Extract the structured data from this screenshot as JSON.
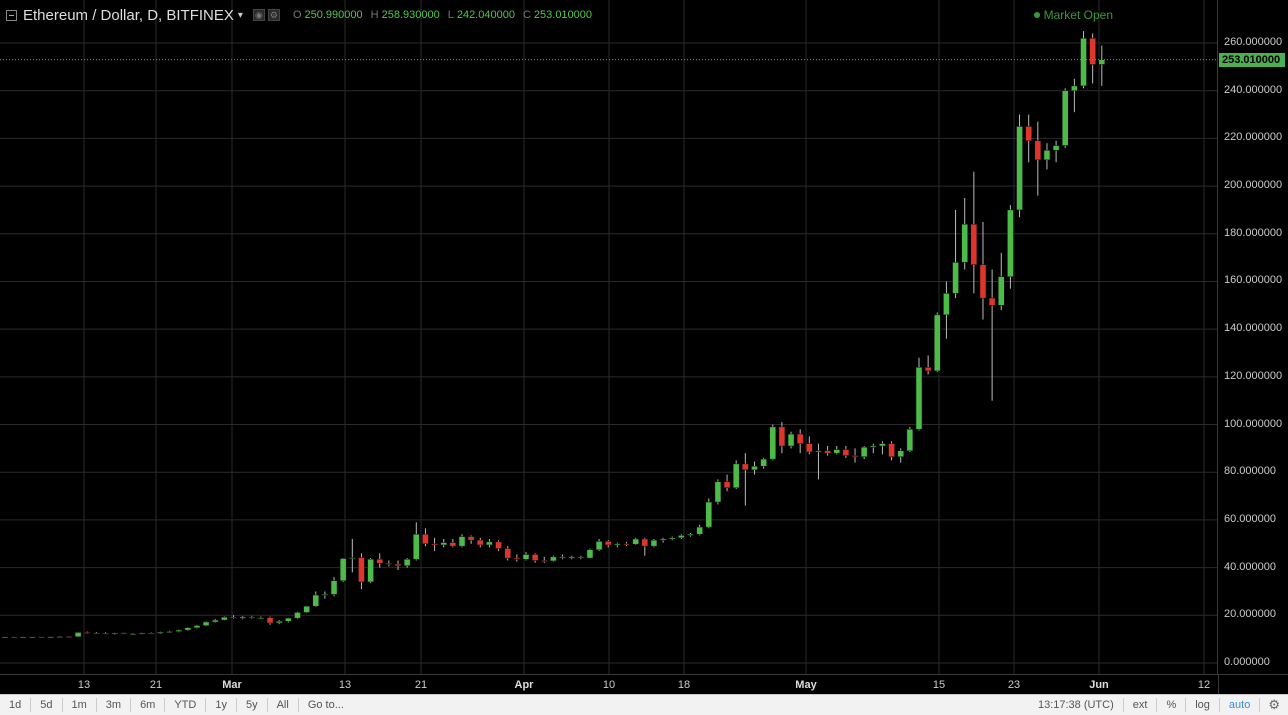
{
  "header": {
    "symbol_title": "Ethereum / Dollar, D, BITFINEX",
    "caret": "▾",
    "ohlc": [
      {
        "k": "O",
        "v": "250.990000"
      },
      {
        "k": "H",
        "v": "258.930000"
      },
      {
        "k": "L",
        "v": "242.040000"
      },
      {
        "k": "C",
        "v": "253.010000"
      }
    ]
  },
  "market_status": "Market Open",
  "price_axis": {
    "labels": [
      "260.000000",
      "240.000000",
      "220.000000",
      "200.000000",
      "180.000000",
      "160.000000",
      "140.000000",
      "120.000000",
      "100.000000",
      "80.000000",
      "60.000000",
      "40.000000",
      "20.000000",
      "0.000000"
    ],
    "last_price": "253.010000"
  },
  "time_axis": {
    "labels": [
      {
        "text": "13",
        "bold": false
      },
      {
        "text": "21",
        "bold": false
      },
      {
        "text": "Mar",
        "bold": true
      },
      {
        "text": "13",
        "bold": false
      },
      {
        "text": "21",
        "bold": false
      },
      {
        "text": "Apr",
        "bold": true
      },
      {
        "text": "10",
        "bold": false
      },
      {
        "text": "18",
        "bold": false
      },
      {
        "text": "May",
        "bold": true
      },
      {
        "text": "15",
        "bold": false
      },
      {
        "text": "23",
        "bold": false
      },
      {
        "text": "Jun",
        "bold": true
      },
      {
        "text": "12",
        "bold": false
      }
    ]
  },
  "toolbar": {
    "ranges": [
      "1d",
      "5d",
      "1m",
      "3m",
      "6m",
      "YTD",
      "1y",
      "5y",
      "All"
    ],
    "goto": "Go to...",
    "clock": "13:17:38 (UTC)",
    "ext": "ext",
    "percent": "%",
    "log": "log",
    "auto": "auto"
  },
  "colors": {
    "up": "#4cbb47",
    "down": "#e0352b",
    "grid": "#2a2a2a",
    "last_line": "#4caf50",
    "wick": "#bbbbbb"
  },
  "chart_data": {
    "type": "candlestick",
    "ylim": [
      0,
      270
    ],
    "candles": [
      [
        10.8,
        11.0,
        10.6,
        10.9
      ],
      [
        10.9,
        11.0,
        10.7,
        10.8
      ],
      [
        10.8,
        11.0,
        10.6,
        10.9
      ],
      [
        10.9,
        11.1,
        10.7,
        11.0
      ],
      [
        11.0,
        11.1,
        10.8,
        10.9
      ],
      [
        10.9,
        11.2,
        10.7,
        11.0
      ],
      [
        11.0,
        11.3,
        10.8,
        11.1
      ],
      [
        11.1,
        11.3,
        10.9,
        11.0
      ],
      [
        11.0,
        13.0,
        10.9,
        12.8
      ],
      [
        12.8,
        13.2,
        12.3,
        12.6
      ],
      [
        12.6,
        13.0,
        12.2,
        12.5
      ],
      [
        12.5,
        12.9,
        12.0,
        12.2
      ],
      [
        12.2,
        12.7,
        11.9,
        12.6
      ],
      [
        12.6,
        12.8,
        12.1,
        12.2
      ],
      [
        12.2,
        12.6,
        11.8,
        12.3
      ],
      [
        12.3,
        12.7,
        12.0,
        12.5
      ],
      [
        12.5,
        12.8,
        12.2,
        12.4
      ],
      [
        12.4,
        13.1,
        12.2,
        12.9
      ],
      [
        12.9,
        13.5,
        12.6,
        13.2
      ],
      [
        13.2,
        14.0,
        12.9,
        13.8
      ],
      [
        13.8,
        15.0,
        13.5,
        14.8
      ],
      [
        14.8,
        16.0,
        14.5,
        15.7
      ],
      [
        15.7,
        17.5,
        15.4,
        17.2
      ],
      [
        17.2,
        18.5,
        16.9,
        18.0
      ],
      [
        18.0,
        19.5,
        17.8,
        19.2
      ],
      [
        19.2,
        20.0,
        18.5,
        18.8
      ],
      [
        18.8,
        19.7,
        18.3,
        19.3
      ],
      [
        19.3,
        19.8,
        18.6,
        18.9
      ],
      [
        18.9,
        19.5,
        18.4,
        19.0
      ],
      [
        19.0,
        19.5,
        16.0,
        16.8
      ],
      [
        16.8,
        18.0,
        16.3,
        17.5
      ],
      [
        17.5,
        19.0,
        17.0,
        18.8
      ],
      [
        18.8,
        21.5,
        18.5,
        21.2
      ],
      [
        21.2,
        24.0,
        21.0,
        23.8
      ],
      [
        23.8,
        30.0,
        23.5,
        28.5
      ],
      [
        28.5,
        30.0,
        27.0,
        28.8
      ],
      [
        28.8,
        36.0,
        28.0,
        34.5
      ],
      [
        34.5,
        44.0,
        34.0,
        43.8
      ],
      [
        43.8,
        52.0,
        38.0,
        44.2
      ],
      [
        44.2,
        46.0,
        31.0,
        34.0
      ],
      [
        34.0,
        44.0,
        33.5,
        43.5
      ],
      [
        43.5,
        46.0,
        40.0,
        41.8
      ],
      [
        41.8,
        43.0,
        40.5,
        41.5
      ],
      [
        41.5,
        43.0,
        39.0,
        40.8
      ],
      [
        40.8,
        44.0,
        40.0,
        43.5
      ],
      [
        43.5,
        59.0,
        43.0,
        54.0
      ],
      [
        54.0,
        56.5,
        49.0,
        50.0
      ],
      [
        50.0,
        52.5,
        47.0,
        49.5
      ],
      [
        49.5,
        52.0,
        48.5,
        50.5
      ],
      [
        50.5,
        52.0,
        48.5,
        49.0
      ],
      [
        49.0,
        54.0,
        48.5,
        53.0
      ],
      [
        53.0,
        53.5,
        50.0,
        51.5
      ],
      [
        51.5,
        52.5,
        48.5,
        49.5
      ],
      [
        49.5,
        52.0,
        48.5,
        50.8
      ],
      [
        50.8,
        51.5,
        47.0,
        48.0
      ],
      [
        48.0,
        49.0,
        43.0,
        44.0
      ],
      [
        44.0,
        45.5,
        42.5,
        43.5
      ],
      [
        43.5,
        46.5,
        43.0,
        45.5
      ],
      [
        45.5,
        46.0,
        42.0,
        43.0
      ],
      [
        43.0,
        44.5,
        42.0,
        42.8
      ],
      [
        42.8,
        45.0,
        42.5,
        44.5
      ],
      [
        44.5,
        45.5,
        43.5,
        44.0
      ],
      [
        44.0,
        45.0,
        43.5,
        44.5
      ],
      [
        44.5,
        45.0,
        43.5,
        44.0
      ],
      [
        44.0,
        48.0,
        43.8,
        47.5
      ],
      [
        47.5,
        52.0,
        47.0,
        51.0
      ],
      [
        51.0,
        51.5,
        48.5,
        49.5
      ],
      [
        49.5,
        50.5,
        48.5,
        50.0
      ],
      [
        50.0,
        50.8,
        49.0,
        49.8
      ],
      [
        49.8,
        52.5,
        49.5,
        52.0
      ],
      [
        52.0,
        52.5,
        45.0,
        49.0
      ],
      [
        49.0,
        52.0,
        48.5,
        51.5
      ],
      [
        51.5,
        52.5,
        50.5,
        52.0
      ],
      [
        52.0,
        53.0,
        51.5,
        52.5
      ],
      [
        52.5,
        54.0,
        52.0,
        53.5
      ],
      [
        53.5,
        54.5,
        53.0,
        54.0
      ],
      [
        54.0,
        58.0,
        53.5,
        57.0
      ],
      [
        57.0,
        69.0,
        56.5,
        67.5
      ],
      [
        67.5,
        77.0,
        66.5,
        76.0
      ],
      [
        76.0,
        79.0,
        72.0,
        73.5
      ],
      [
        73.5,
        85.0,
        73.0,
        83.5
      ],
      [
        83.5,
        88.0,
        66.0,
        81.0
      ],
      [
        81.0,
        84.5,
        79.0,
        82.5
      ],
      [
        82.5,
        86.0,
        81.5,
        85.5
      ],
      [
        85.5,
        100.0,
        85.0,
        99.0
      ],
      [
        99.0,
        101.0,
        88.0,
        91.0
      ],
      [
        91.0,
        97.0,
        90.0,
        96.0
      ],
      [
        96.0,
        98.0,
        88.0,
        92.0
      ],
      [
        92.0,
        95.0,
        87.5,
        88.5
      ],
      [
        88.5,
        92.0,
        77.0,
        89.0
      ],
      [
        89.0,
        91.0,
        87.0,
        88.0
      ],
      [
        88.0,
        91.0,
        87.5,
        89.5
      ],
      [
        89.5,
        91.0,
        86.0,
        87.0
      ],
      [
        87.0,
        90.0,
        84.0,
        86.5
      ],
      [
        86.5,
        91.0,
        85.5,
        90.5
      ],
      [
        90.5,
        92.0,
        88.0,
        91.0
      ],
      [
        91.0,
        93.0,
        87.5,
        92.0
      ],
      [
        92.0,
        93.0,
        85.0,
        86.5
      ],
      [
        86.5,
        90.0,
        84.0,
        89.0
      ],
      [
        89.0,
        99.0,
        88.5,
        98.0
      ],
      [
        98.0,
        128.0,
        97.5,
        124.0
      ],
      [
        124.0,
        129.0,
        121.0,
        122.5
      ],
      [
        122.5,
        147.0,
        122.0,
        146.0
      ],
      [
        146.0,
        160.0,
        136.0,
        155.0
      ],
      [
        155.0,
        190.0,
        153.0,
        168.0
      ],
      [
        168.0,
        195.0,
        165.0,
        184.0
      ],
      [
        184.0,
        206.0,
        155.0,
        167.0
      ],
      [
        167.0,
        185.0,
        144.0,
        153.0
      ],
      [
        153.0,
        165.0,
        110.0,
        150.0
      ],
      [
        150.0,
        172.0,
        148.0,
        162.0
      ],
      [
        162.0,
        192.0,
        157.0,
        190.0
      ],
      [
        190.0,
        230.0,
        187.0,
        225.0
      ],
      [
        225.0,
        230.0,
        210.0,
        219.0
      ],
      [
        219.0,
        227.0,
        196.0,
        211.0
      ],
      [
        211.0,
        218.0,
        207.0,
        215.0
      ],
      [
        215.0,
        219.0,
        210.0,
        217.0
      ],
      [
        217.0,
        241.0,
        216.0,
        240.0
      ],
      [
        240.0,
        245.0,
        231.0,
        242.0
      ],
      [
        242.0,
        265.0,
        241.0,
        262.0
      ],
      [
        262.0,
        264.0,
        243.0,
        251.0
      ],
      [
        250.99,
        258.93,
        242.04,
        253.01
      ]
    ]
  }
}
